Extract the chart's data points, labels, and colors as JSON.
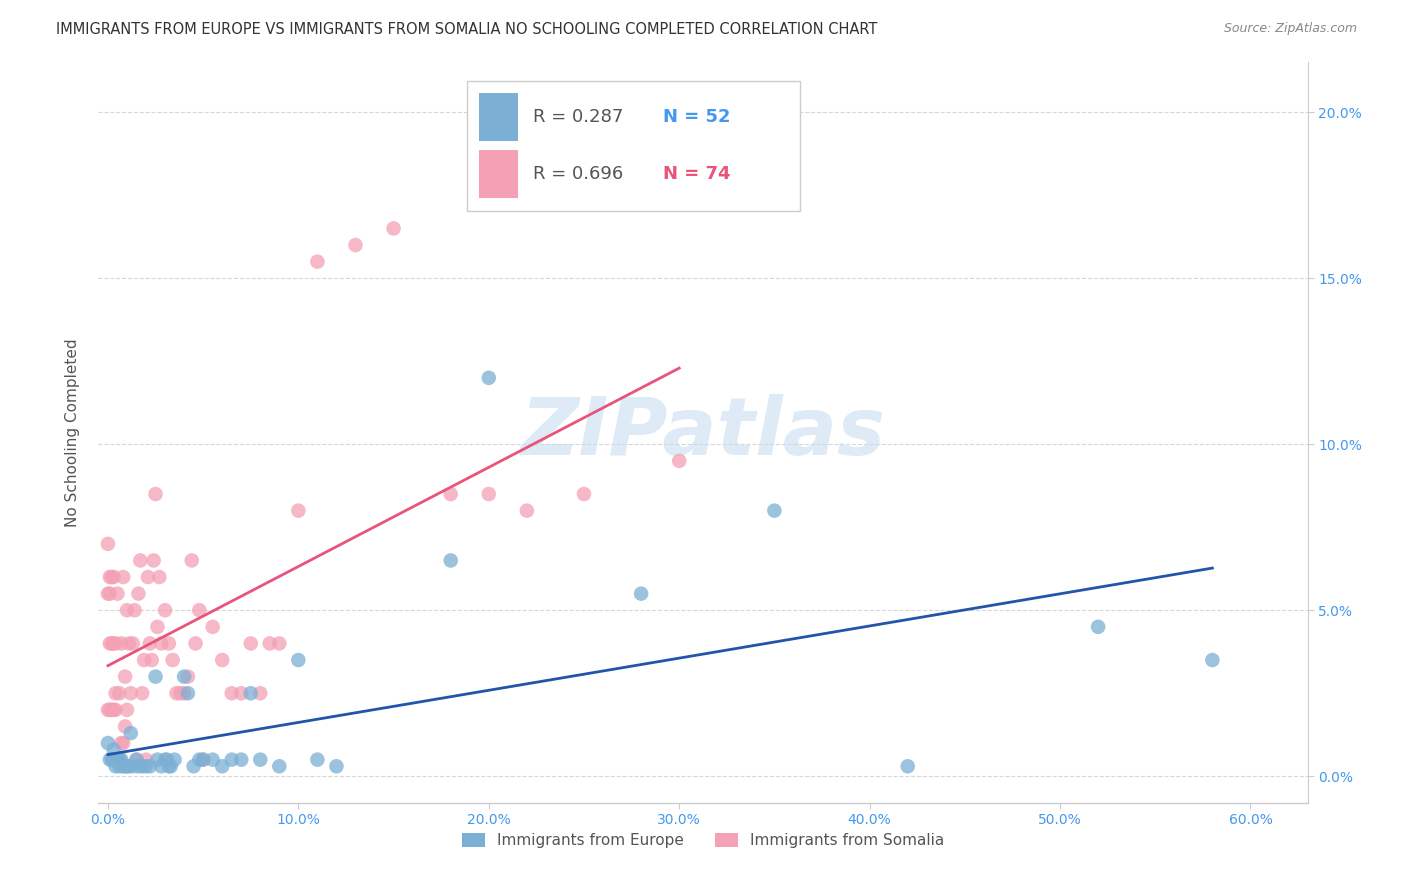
{
  "title": "IMMIGRANTS FROM EUROPE VS IMMIGRANTS FROM SOMALIA NO SCHOOLING COMPLETED CORRELATION CHART",
  "source": "Source: ZipAtlas.com",
  "xlabel_ticks": [
    "0.0%",
    "10.0%",
    "20.0%",
    "30.0%",
    "40.0%",
    "50.0%",
    "60.0%"
  ],
  "xlabel_tick_vals": [
    0.0,
    0.1,
    0.2,
    0.3,
    0.4,
    0.5,
    0.6
  ],
  "ylabel": "No Schooling Completed",
  "ylabel_ticks_left": [
    "",
    "",
    "",
    "",
    ""
  ],
  "ylabel_ticks_right": [
    "0.0%",
    "5.0%",
    "10.0%",
    "15.0%",
    "20.0%"
  ],
  "ylabel_tick_vals": [
    0.0,
    0.05,
    0.1,
    0.15,
    0.2
  ],
  "xlim": [
    -0.005,
    0.63
  ],
  "ylim": [
    -0.008,
    0.215
  ],
  "legend_europe_R": "R = 0.287",
  "legend_europe_N": "N = 52",
  "legend_somalia_R": "R = 0.696",
  "legend_somalia_N": "N = 74",
  "color_europe": "#7BAFD4",
  "color_somalia": "#F4A0B5",
  "color_europe_line": "#2255AA",
  "color_somalia_line": "#E8547A",
  "watermark_color": "#C8DCF0",
  "background_color": "#ffffff",
  "europe_x": [
    0.001,
    0.002,
    0.003,
    0.004,
    0.005,
    0.005,
    0.006,
    0.007,
    0.008,
    0.009,
    0.01,
    0.011,
    0.012,
    0.013,
    0.015,
    0.016,
    0.018,
    0.02,
    0.022,
    0.025,
    0.026,
    0.028,
    0.03,
    0.031,
    0.032,
    0.033,
    0.035,
    0.04,
    0.042,
    0.045,
    0.048,
    0.05,
    0.055,
    0.06,
    0.065,
    0.07,
    0.075,
    0.08,
    0.09,
    0.1,
    0.11,
    0.12,
    0.18,
    0.2,
    0.28,
    0.35,
    0.42,
    0.52,
    0.58,
    0.003,
    0.006,
    0.0
  ],
  "europe_y": [
    0.005,
    0.005,
    0.005,
    0.003,
    0.005,
    0.005,
    0.003,
    0.005,
    0.003,
    0.003,
    0.003,
    0.003,
    0.013,
    0.003,
    0.005,
    0.003,
    0.003,
    0.003,
    0.003,
    0.03,
    0.005,
    0.003,
    0.005,
    0.005,
    0.003,
    0.003,
    0.005,
    0.03,
    0.025,
    0.003,
    0.005,
    0.005,
    0.005,
    0.003,
    0.005,
    0.005,
    0.025,
    0.005,
    0.003,
    0.035,
    0.005,
    0.003,
    0.065,
    0.12,
    0.055,
    0.08,
    0.003,
    0.045,
    0.035,
    0.008,
    0.005,
    0.01
  ],
  "somalia_x": [
    0.0,
    0.0,
    0.001,
    0.001,
    0.001,
    0.002,
    0.002,
    0.003,
    0.003,
    0.004,
    0.004,
    0.005,
    0.005,
    0.006,
    0.006,
    0.007,
    0.007,
    0.008,
    0.008,
    0.009,
    0.009,
    0.01,
    0.01,
    0.011,
    0.012,
    0.013,
    0.014,
    0.015,
    0.016,
    0.017,
    0.018,
    0.019,
    0.02,
    0.021,
    0.022,
    0.023,
    0.024,
    0.025,
    0.026,
    0.027,
    0.028,
    0.03,
    0.032,
    0.034,
    0.036,
    0.038,
    0.04,
    0.042,
    0.044,
    0.046,
    0.048,
    0.05,
    0.055,
    0.06,
    0.065,
    0.07,
    0.075,
    0.08,
    0.085,
    0.09,
    0.1,
    0.11,
    0.13,
    0.15,
    0.18,
    0.2,
    0.22,
    0.25,
    0.3,
    0.0,
    0.001,
    0.002,
    0.003,
    0.004
  ],
  "somalia_y": [
    0.055,
    0.07,
    0.02,
    0.055,
    0.06,
    0.02,
    0.06,
    0.02,
    0.06,
    0.02,
    0.04,
    0.005,
    0.055,
    0.005,
    0.025,
    0.01,
    0.04,
    0.01,
    0.06,
    0.015,
    0.03,
    0.02,
    0.05,
    0.04,
    0.025,
    0.04,
    0.05,
    0.005,
    0.055,
    0.065,
    0.025,
    0.035,
    0.005,
    0.06,
    0.04,
    0.035,
    0.065,
    0.085,
    0.045,
    0.06,
    0.04,
    0.05,
    0.04,
    0.035,
    0.025,
    0.025,
    0.025,
    0.03,
    0.065,
    0.04,
    0.05,
    0.005,
    0.045,
    0.035,
    0.025,
    0.025,
    0.04,
    0.025,
    0.04,
    0.04,
    0.08,
    0.155,
    0.16,
    0.165,
    0.085,
    0.085,
    0.08,
    0.085,
    0.095,
    0.02,
    0.04,
    0.04,
    0.04,
    0.025
  ]
}
